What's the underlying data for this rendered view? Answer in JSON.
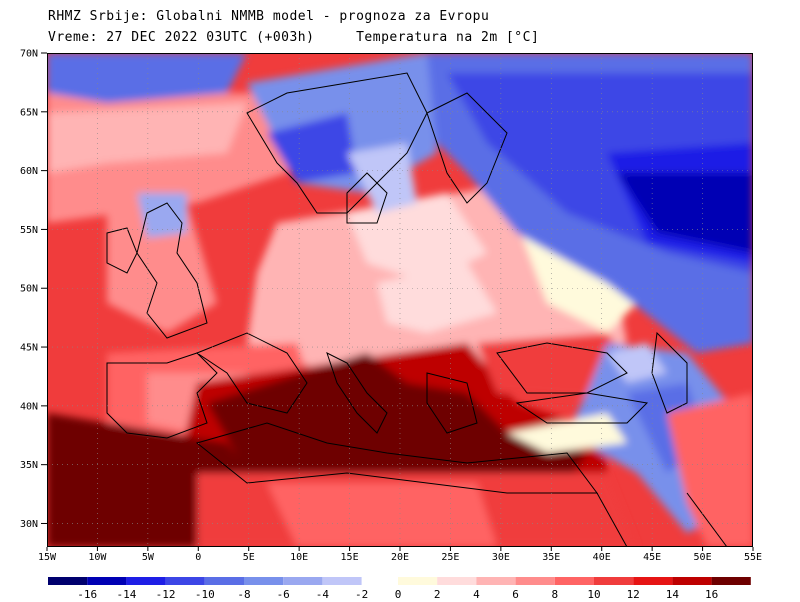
{
  "header": {
    "line1": "RHMZ Srbije: Globalni NMMB model - prognoza za Evropu",
    "line2_time": "Vreme: 27 DEC 2022 03UTC (+003h)",
    "line2_variable": "Temperatura na 2m [°C]"
  },
  "map": {
    "lat_labels": [
      "70N",
      "65N",
      "60N",
      "55N",
      "50N",
      "45N",
      "40N",
      "35N",
      "30N"
    ],
    "lon_labels": [
      "15W",
      "10W",
      "5W",
      "0",
      "5E",
      "10E",
      "15E",
      "20E",
      "25E",
      "30E",
      "35E",
      "40E",
      "45E",
      "50E",
      "55E"
    ],
    "lat_range": [
      28,
      70
    ],
    "lon_range": [
      -15,
      55
    ],
    "grid": "dotted"
  },
  "colorbar": {
    "cold_labels": [
      "-16",
      "-14",
      "-12",
      "-10",
      "-8",
      "-6",
      "-4",
      "-2"
    ],
    "warm_labels": [
      "0",
      "2",
      "4",
      "6",
      "8",
      "10",
      "12",
      "14",
      "16"
    ],
    "cold_colors": [
      "#00006e",
      "#0000b4",
      "#1e1ee6",
      "#3c46e6",
      "#5a6ee6",
      "#7890eb",
      "#9aa8f0",
      "#c0c6f8"
    ],
    "warm_colors": [
      "#fffadc",
      "#ffdcdc",
      "#ffb4b4",
      "#ff8c8c",
      "#ff6464",
      "#f03c3c",
      "#e61414",
      "#be0000",
      "#6e0000"
    ]
  }
}
